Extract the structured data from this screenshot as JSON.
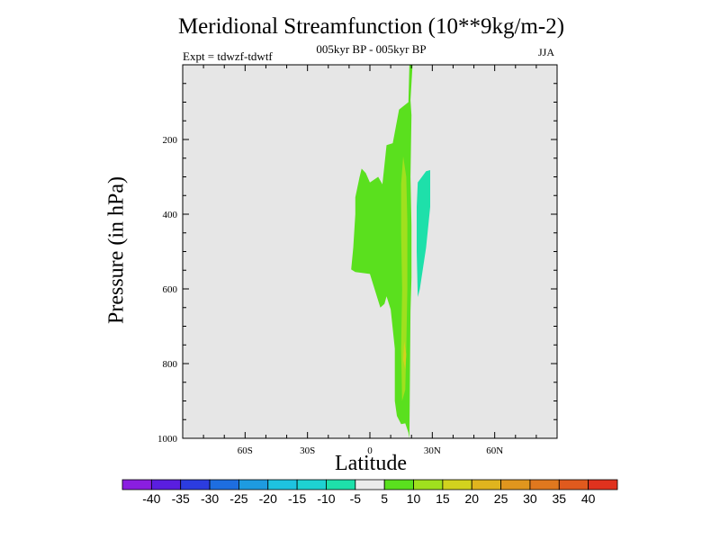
{
  "title": "Meridional Streamfunction (10**9kg/m-2)",
  "subtitle": "005kyr BP - 005kyr BP",
  "experiment": "Expt = tdwzf-tdwtf",
  "season": "JJA",
  "chart_data": {
    "type": "contour",
    "xlabel": "Latitude",
    "ylabel": "Pressure (in hPa)",
    "xlim": [
      -90,
      90
    ],
    "ylim": [
      1000,
      0
    ],
    "x_ticks": [
      {
        "value": -60,
        "label": "60S"
      },
      {
        "value": -30,
        "label": "30S"
      },
      {
        "value": 0,
        "label": "0"
      },
      {
        "value": 30,
        "label": "30N"
      },
      {
        "value": 60,
        "label": "60N"
      }
    ],
    "y_ticks": [
      {
        "value": 200,
        "label": "200"
      },
      {
        "value": 400,
        "label": "400"
      },
      {
        "value": 600,
        "label": "600"
      },
      {
        "value": 800,
        "label": "800"
      },
      {
        "value": 1000,
        "label": "1000"
      }
    ],
    "background_color": "#e6e6e6",
    "colorbar": {
      "colors": [
        "#8a1ee0",
        "#5a1ee0",
        "#2c3ce0",
        "#1e6ee0",
        "#1e9be0",
        "#1ec3e0",
        "#1ed2d2",
        "#1ee0aa",
        "#ebebeb",
        "#5ae01e",
        "#a0e01e",
        "#d2d21e",
        "#e0b41e",
        "#e0961e",
        "#e0781e",
        "#e05a1e",
        "#e0321e"
      ],
      "labels": [
        "-40",
        "-35",
        "-30",
        "-25",
        "-20",
        "-15",
        "-10",
        "-5",
        "5",
        "10",
        "15",
        "20",
        "25",
        "30",
        "35",
        "40"
      ]
    },
    "regions": [
      {
        "level": "5 to 10",
        "color": "#5ae01e",
        "points": [
          [
            19,
            1000
          ],
          [
            19.5,
            660
          ],
          [
            20,
            570
          ],
          [
            20,
            430
          ],
          [
            19.5,
            300
          ],
          [
            20,
            135
          ],
          [
            19.5,
            95
          ],
          [
            20.5,
            0
          ],
          [
            19,
            0
          ],
          [
            18.5,
            100
          ],
          [
            14,
            120
          ],
          [
            11,
            210
          ],
          [
            8,
            215
          ],
          [
            6,
            320
          ],
          [
            4,
            300
          ],
          [
            0,
            315
          ],
          [
            -2,
            290
          ],
          [
            -4,
            278
          ],
          [
            -5,
            302
          ],
          [
            -7,
            355
          ],
          [
            -7,
            400
          ],
          [
            -8,
            490
          ],
          [
            -9,
            548
          ],
          [
            -7,
            555
          ],
          [
            0,
            560
          ],
          [
            5,
            650
          ],
          [
            7,
            640
          ],
          [
            8,
            620
          ],
          [
            10,
            655
          ],
          [
            12,
            760
          ],
          [
            12,
            900
          ],
          [
            13,
            940
          ],
          [
            15,
            962
          ],
          [
            17,
            960
          ],
          [
            18.5,
            985
          ]
        ]
      },
      {
        "level": "-10 to -5",
        "color": "#1ee0aa",
        "points": [
          [
            23,
            315
          ],
          [
            27,
            285
          ],
          [
            29,
            282
          ],
          [
            29,
            380
          ],
          [
            27,
            490
          ],
          [
            24,
            600
          ],
          [
            23,
            622
          ],
          [
            22.5,
            500
          ],
          [
            22.5,
            380
          ]
        ]
      },
      {
        "level": "10 to 15",
        "color": "#a0e01e",
        "points": [
          [
            16,
            245
          ],
          [
            17.5,
            300
          ],
          [
            18,
            420
          ],
          [
            18,
            600
          ],
          [
            17.5,
            760
          ],
          [
            17,
            870
          ],
          [
            15.5,
            900
          ],
          [
            15,
            760
          ],
          [
            15.5,
            600
          ],
          [
            15,
            450
          ],
          [
            15,
            320
          ]
        ]
      },
      {
        "level": "15 to 20",
        "color": "#d2d21e",
        "points": [
          [
            16.5,
            740
          ],
          [
            17.5,
            775
          ],
          [
            17,
            815
          ],
          [
            16,
            790
          ]
        ]
      }
    ]
  }
}
